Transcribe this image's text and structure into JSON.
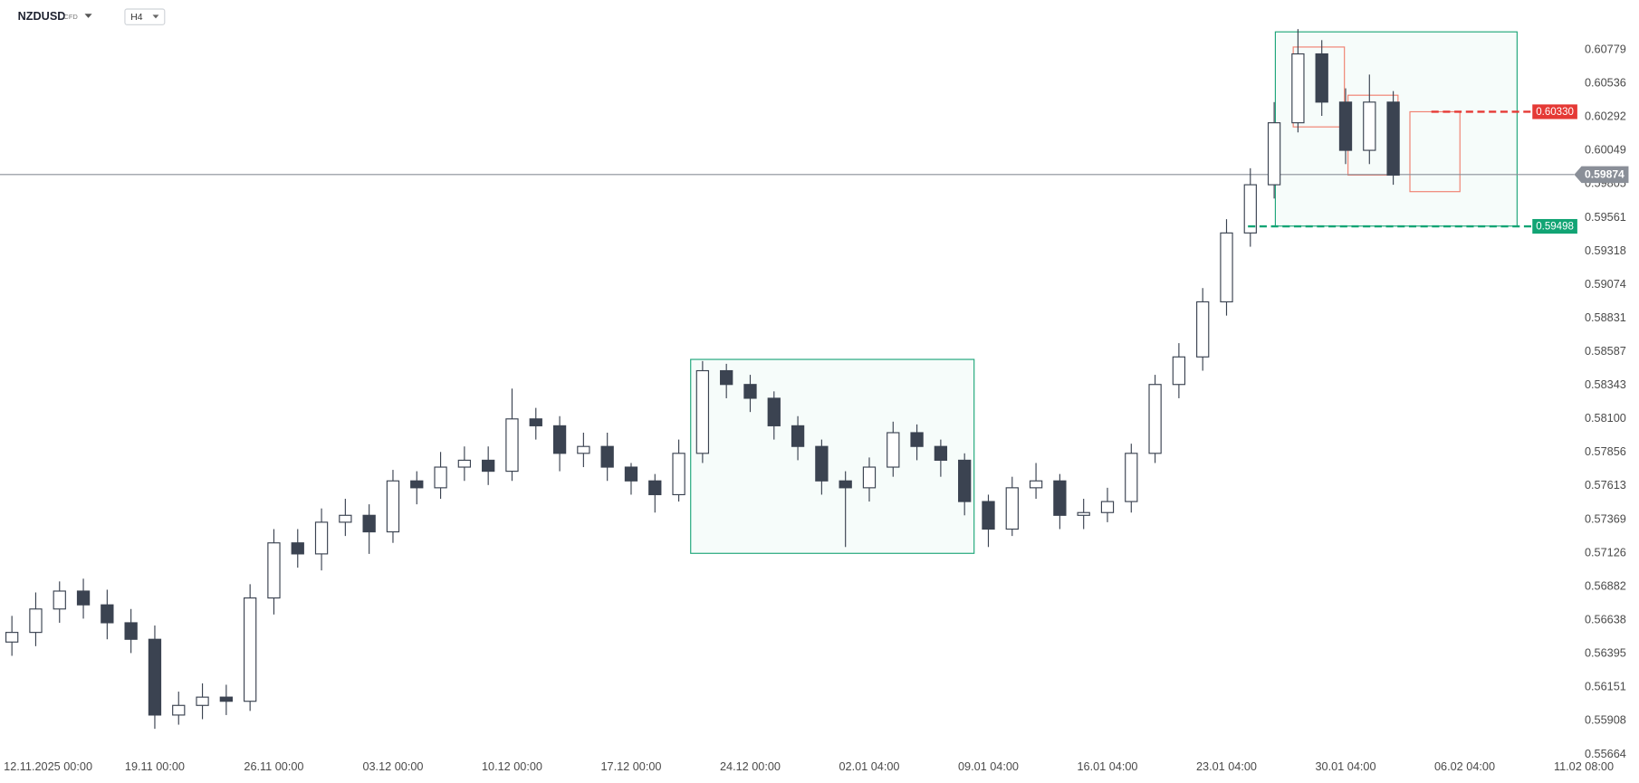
{
  "header": {
    "symbol": "NZDUSD",
    "instrument": "CFD",
    "timeframe": "H4"
  },
  "chart_data": {
    "type": "candlestick",
    "xlim": [
      -0.5,
      66.3
    ],
    "ylim": [
      0.5564,
      0.6114
    ],
    "grid": false,
    "up_color": "#ffffff",
    "down_color": "#3b4351",
    "outline_color": "#3b4351",
    "xticks": [
      {
        "value": 1,
        "label": "12.11.2025  00:00"
      },
      {
        "value": 6,
        "label": "19.11  00:00"
      },
      {
        "value": 11,
        "label": "26.11  00:00"
      },
      {
        "value": 16,
        "label": "03.12  00:00"
      },
      {
        "value": 21,
        "label": "10.12  00:00"
      },
      {
        "value": 26,
        "label": "17.12  00:00"
      },
      {
        "value": 31,
        "label": "24.12  00:00"
      },
      {
        "value": 36,
        "label": "02.01  04:00"
      },
      {
        "value": 41,
        "label": "09.01  04:00"
      },
      {
        "value": 46,
        "label": "16.01  04:00"
      },
      {
        "value": 51,
        "label": "23.01  04:00"
      },
      {
        "value": 56,
        "label": "30.01  04:00"
      },
      {
        "value": 61,
        "label": "06.02  04:00"
      },
      {
        "value": 66,
        "label": "11.02  08:00"
      }
    ],
    "yticks": [
      0.60779,
      0.60536,
      0.60292,
      0.60049,
      0.59805,
      0.59561,
      0.59318,
      0.59074,
      0.58831,
      0.58587,
      0.58343,
      {
        "value": 0.581,
        "label": "0.58100"
      },
      0.57856,
      0.57613,
      0.57369,
      0.57126,
      0.56882,
      0.56638,
      0.56395,
      0.56151,
      0.55908,
      0.55664
    ],
    "open": [
      0.5648,
      0.5655,
      0.5672,
      0.5685,
      0.5675,
      0.5662,
      0.565,
      0.5595,
      0.5602,
      0.5608,
      0.5605,
      0.568,
      0.572,
      0.5712,
      0.5735,
      0.574,
      0.5728,
      0.5765,
      0.576,
      0.5775,
      0.578,
      0.5772,
      0.581,
      0.5805,
      0.5785,
      0.579,
      0.5775,
      0.5765,
      0.5755,
      0.5785,
      0.5845,
      0.5835,
      0.5825,
      0.5805,
      0.579,
      0.5765,
      0.576,
      0.5775,
      0.58,
      0.579,
      0.578,
      0.575,
      0.573,
      0.576,
      0.5765,
      0.574,
      0.5742,
      0.575,
      0.5785,
      0.5835,
      0.5855,
      0.5895,
      0.5945,
      0.598,
      0.6025,
      0.6075,
      0.604,
      0.6005,
      0.604
    ],
    "high": [
      0.5667,
      0.5684,
      0.5692,
      0.5694,
      0.5686,
      0.5672,
      0.566,
      0.5612,
      0.5618,
      0.5617,
      0.569,
      0.573,
      0.573,
      0.5745,
      0.5752,
      0.5748,
      0.5773,
      0.5772,
      0.5786,
      0.579,
      0.579,
      0.5832,
      0.5818,
      0.5812,
      0.58,
      0.58,
      0.5778,
      0.577,
      0.5795,
      0.5852,
      0.585,
      0.5842,
      0.583,
      0.5812,
      0.5795,
      0.5772,
      0.5782,
      0.5808,
      0.5806,
      0.5795,
      0.5785,
      0.5755,
      0.5768,
      0.5778,
      0.577,
      0.5752,
      0.576,
      0.5792,
      0.5842,
      0.5865,
      0.5905,
      0.5955,
      0.5992,
      0.604,
      0.6093,
      0.6085,
      0.605,
      0.606,
      0.6048
    ],
    "low": [
      0.5638,
      0.5645,
      0.5662,
      0.5665,
      0.565,
      0.564,
      0.5585,
      0.5588,
      0.5592,
      0.5595,
      0.5598,
      0.5668,
      0.5702,
      0.57,
      0.5725,
      0.5712,
      0.572,
      0.5748,
      0.5752,
      0.5765,
      0.5762,
      0.5765,
      0.5795,
      0.5772,
      0.5775,
      0.5765,
      0.5755,
      0.5742,
      0.575,
      0.5778,
      0.5825,
      0.5815,
      0.5795,
      0.578,
      0.5755,
      0.5717,
      0.575,
      0.5768,
      0.578,
      0.5768,
      0.574,
      0.5717,
      0.5725,
      0.5752,
      0.573,
      0.573,
      0.5735,
      0.5742,
      0.5778,
      0.5825,
      0.5845,
      0.5885,
      0.5935,
      0.597,
      0.6018,
      0.603,
      0.5995,
      0.5995,
      0.598
    ],
    "close": [
      0.5655,
      0.5672,
      0.5685,
      0.5675,
      0.5662,
      0.565,
      0.5595,
      0.5602,
      0.5608,
      0.5605,
      0.568,
      0.572,
      0.5712,
      0.5735,
      0.574,
      0.5728,
      0.5765,
      0.576,
      0.5775,
      0.578,
      0.5772,
      0.581,
      0.5805,
      0.5785,
      0.579,
      0.5775,
      0.5765,
      0.5755,
      0.5785,
      0.5845,
      0.5835,
      0.5825,
      0.5805,
      0.579,
      0.5765,
      0.576,
      0.5775,
      0.58,
      0.579,
      0.578,
      0.575,
      0.573,
      0.576,
      0.5765,
      0.574,
      0.5742,
      0.575,
      0.5785,
      0.5835,
      0.5855,
      0.5895,
      0.5945,
      0.598,
      0.6025,
      0.6075,
      0.604,
      0.6005,
      0.604,
      0.5987
    ],
    "shapes": [
      {
        "kind": "rect",
        "x": [
          28.5,
          40.4
        ],
        "y": [
          0.58532,
          0.57124
        ],
        "color": "#1fa67a"
      },
      {
        "kind": "rect",
        "x": [
          53.05,
          63.2
        ],
        "y": [
          0.6091,
          0.595
        ],
        "color": "#1fa67a"
      },
      {
        "kind": "rect",
        "x": [
          53.8,
          55.95
        ],
        "y": [
          0.608,
          0.6022
        ],
        "color": "#f08070"
      },
      {
        "kind": "rect",
        "x": [
          56.1,
          58.2
        ],
        "y": [
          0.6045,
          0.5987
        ],
        "color": "#f08070"
      },
      {
        "kind": "rect",
        "x": [
          58.7,
          60.8
        ],
        "y": [
          0.6033,
          0.5975
        ],
        "color": "#f08070"
      }
    ],
    "levels": [
      {
        "value": 0.6033,
        "label": "0.60330",
        "start": 59.6,
        "color": "#e53935"
      },
      {
        "value": 0.59498,
        "label": "0.59498",
        "start": 51.9,
        "color": "#12a474"
      }
    ],
    "last_price": {
      "value": 0.59874,
      "label": "0.59874",
      "color": "#8a8f98"
    }
  }
}
